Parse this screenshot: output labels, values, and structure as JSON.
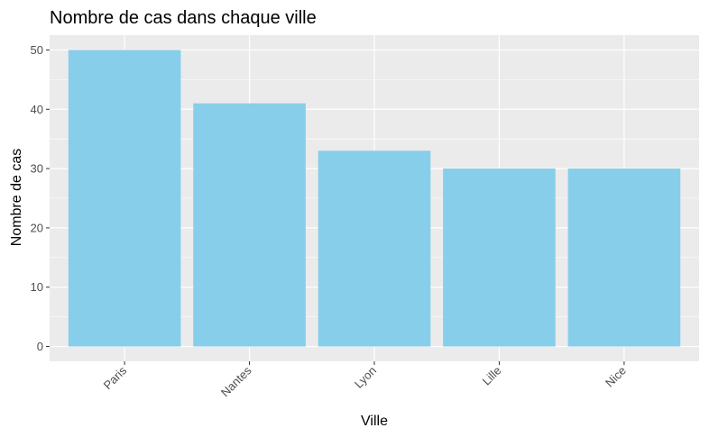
{
  "chart_data": {
    "type": "bar",
    "title": "Nombre de cas dans chaque ville",
    "xlabel": "Ville",
    "ylabel": "Nombre de cas",
    "categories": [
      "Paris",
      "Nantes",
      "Lyon",
      "Lille",
      "Nice"
    ],
    "values": [
      50,
      41,
      33,
      30,
      30
    ],
    "ylim": [
      -2.5,
      52.5
    ],
    "yticks": [
      0,
      10,
      20,
      30,
      40,
      50
    ],
    "grid": true,
    "legend": "none",
    "colors": {
      "bar": "#87CEEB",
      "panel_background": "#EBEBEB",
      "grid": "#FFFFFF",
      "tick_text": "#4D4D4D",
      "tick_mark": "#333333"
    }
  }
}
